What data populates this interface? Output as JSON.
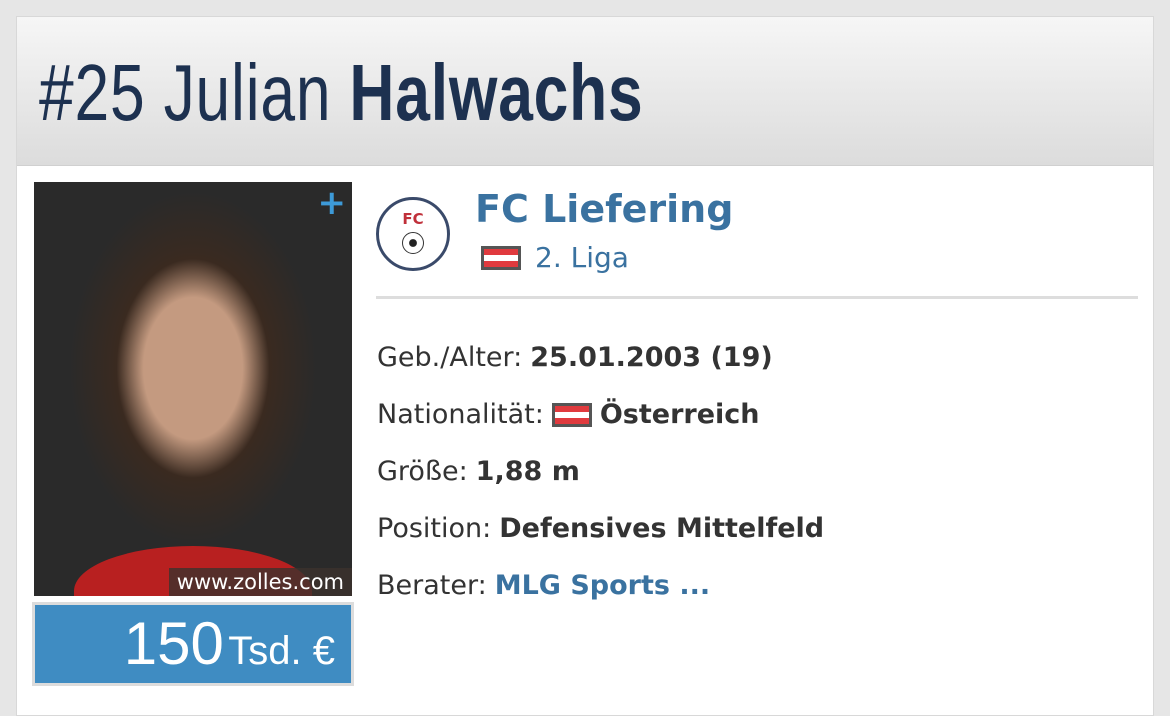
{
  "header": {
    "number": "#25",
    "first_name": "Julian",
    "last_name": "Halwachs"
  },
  "photo": {
    "credit": "www.zolles.com",
    "expand_label": "+"
  },
  "market_value": {
    "amount": "150",
    "unit": "Tsd. €"
  },
  "club": {
    "name": "FC Liefering",
    "logo_text": "FC",
    "league": "2. Liga",
    "league_flag": "austria-flag"
  },
  "info": [
    {
      "label": "Geb./Alter:",
      "value": "25.01.2003 (19)"
    },
    {
      "label": "Nationalität:",
      "value": "Österreich",
      "flag": "austria-flag"
    },
    {
      "label": "Größe:",
      "value": "1,88 m"
    },
    {
      "label": "Position:",
      "value": "Defensives Mittelfeld"
    },
    {
      "label": "Berater:",
      "value": "MLG Sports ..."
    }
  ],
  "colors": {
    "title": "#1d3150",
    "link": "#3a72a0",
    "market_value_bg": "#3f8cc2"
  }
}
